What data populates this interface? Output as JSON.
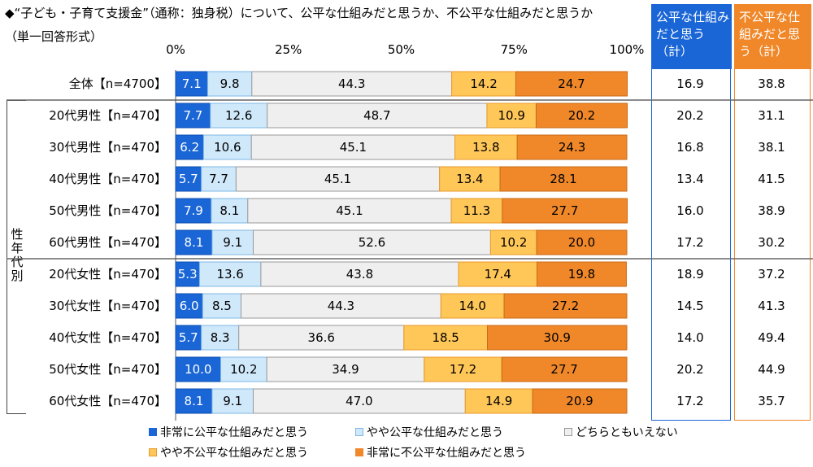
{
  "header": {
    "title": "◆“子ども・子育て支援金”（通称：独身税）について、公平な仕組みだと思うか、不公平な仕組みだと思うか",
    "format": "（単一回答形式）"
  },
  "summary_headers": {
    "fair": "公平な仕組みだと思う（計）",
    "unfair": "不公平な仕組みだと思う（計）"
  },
  "group_label": "性年代別",
  "colors": {
    "very_fair": "#1a66d6",
    "somewhat_fair": "#cfe8fa",
    "neither": "#efefef",
    "somewhat_unfair": "#ffc658",
    "very_unfair": "#f0882a"
  },
  "chart_data": {
    "type": "bar",
    "orientation": "horizontal",
    "stacked": true,
    "xlim": [
      0,
      100
    ],
    "x_tick_labels": [
      "0%",
      "25%",
      "50%",
      "75%",
      "100%"
    ],
    "categories": [
      "全体【n=4700】",
      "20代男性【n=470】",
      "30代男性【n=470】",
      "40代男性【n=470】",
      "50代男性【n=470】",
      "60代男性【n=470】",
      "20代女性【n=470】",
      "30代女性【n=470】",
      "40代女性【n=470】",
      "50代女性【n=470】",
      "60代女性【n=470】"
    ],
    "series": [
      {
        "name": "非常に公平な仕組みだと思う",
        "values": [
          7.1,
          7.7,
          6.2,
          5.7,
          7.9,
          8.1,
          5.3,
          6.0,
          5.7,
          10.0,
          8.1
        ]
      },
      {
        "name": "やや公平な仕組みだと思う",
        "values": [
          9.8,
          12.6,
          10.6,
          7.7,
          8.1,
          9.1,
          13.6,
          8.5,
          8.3,
          10.2,
          9.1
        ]
      },
      {
        "name": "どちらともいえない",
        "values": [
          44.3,
          48.7,
          45.1,
          45.1,
          45.1,
          52.6,
          43.8,
          44.3,
          36.6,
          34.9,
          47.0
        ]
      },
      {
        "name": "やや不公平な仕組みだと思う",
        "values": [
          14.2,
          10.9,
          13.8,
          13.4,
          11.3,
          10.2,
          17.4,
          14.0,
          18.5,
          17.2,
          14.9
        ]
      },
      {
        "name": "非常に不公平な仕組みだと思う",
        "values": [
          24.7,
          20.2,
          24.3,
          28.1,
          27.7,
          20.0,
          19.8,
          27.2,
          30.9,
          27.7,
          20.9
        ]
      }
    ],
    "fair_total": [
      16.9,
      20.2,
      16.8,
      13.4,
      16.0,
      17.2,
      18.9,
      14.5,
      14.0,
      20.2,
      17.2
    ],
    "unfair_total": [
      38.8,
      31.1,
      38.1,
      41.5,
      38.9,
      30.2,
      37.2,
      41.3,
      49.4,
      44.9,
      35.7
    ]
  }
}
